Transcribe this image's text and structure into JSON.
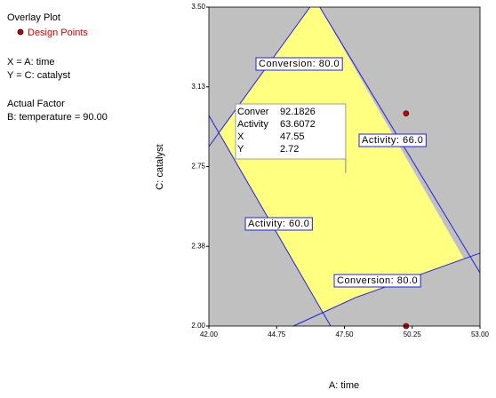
{
  "chart_data": {
    "type": "contour",
    "title": "Overlay Plot",
    "legend": {
      "marker_name": "Design Points",
      "marker_color": "#cc0000"
    },
    "info": [
      "X = A: time",
      "Y = C: catalyst"
    ],
    "factor_title": "Actual Factor",
    "factor": "B: temperature = 90.00",
    "xlabel": "A: time",
    "ylabel": "C: catalyst",
    "xlim": [
      42,
      53
    ],
    "ylim": [
      2,
      3.5
    ],
    "xticks": [
      {
        "value": 42,
        "label": "42.00"
      },
      44.75,
      {
        "value": 47.5,
        "label": "47.50"
      },
      50.25,
      {
        "value": 53,
        "label": "53.00"
      }
    ],
    "yticks": [
      {
        "value": 2,
        "label": "2.00"
      },
      {
        "value": 2.375,
        "label": "2.38"
      },
      2.75,
      {
        "value": 3.125,
        "label": "3.13"
      },
      {
        "value": 3.5,
        "label": "3.50"
      }
    ],
    "background": "#c0c0c0",
    "region": {
      "color": "#ffff80",
      "x": [
        46.1,
        42.41,
        46.6,
        47.95,
        50.47,
        52.35,
        46.5
      ],
      "y": [
        3.5,
        2.907,
        2.064,
        2.134,
        2.238,
        2.316,
        3.5
      ]
    },
    "series": [
      {
        "name": "Conversion: 80.0",
        "color": "#2020e0",
        "x": [
          46.1,
          42
        ],
        "y": [
          3.5,
          2.844
        ]
      },
      {
        "name": "Activity: 66.0",
        "color": "#2020e0",
        "x": [
          46.5,
          53
        ],
        "y": [
          3.5,
          2.25
        ]
      },
      {
        "name": "Activity: 60.0",
        "color": "#2020e0",
        "x": [
          42,
          46.94
        ],
        "y": [
          2.99,
          2.0
        ]
      },
      {
        "name": "Conversion: 80.0",
        "color": "#2020e0",
        "x": [
          45.43,
          47.95,
          50.47,
          53
        ],
        "y": [
          2.0,
          2.134,
          2.238,
          2.343
        ]
      }
    ],
    "points": {
      "x": [
        50,
        50
      ],
      "y": [
        3.0,
        2.0
      ]
    },
    "flag": {
      "rows": [
        {
          "label": "Conver",
          "value": 92.1826
        },
        {
          "label": "Activity",
          "value": 63.6072
        },
        {
          "label": "X",
          "value": 47.55
        },
        {
          "label": "Y",
          "value": 2.72
        }
      ]
    }
  }
}
